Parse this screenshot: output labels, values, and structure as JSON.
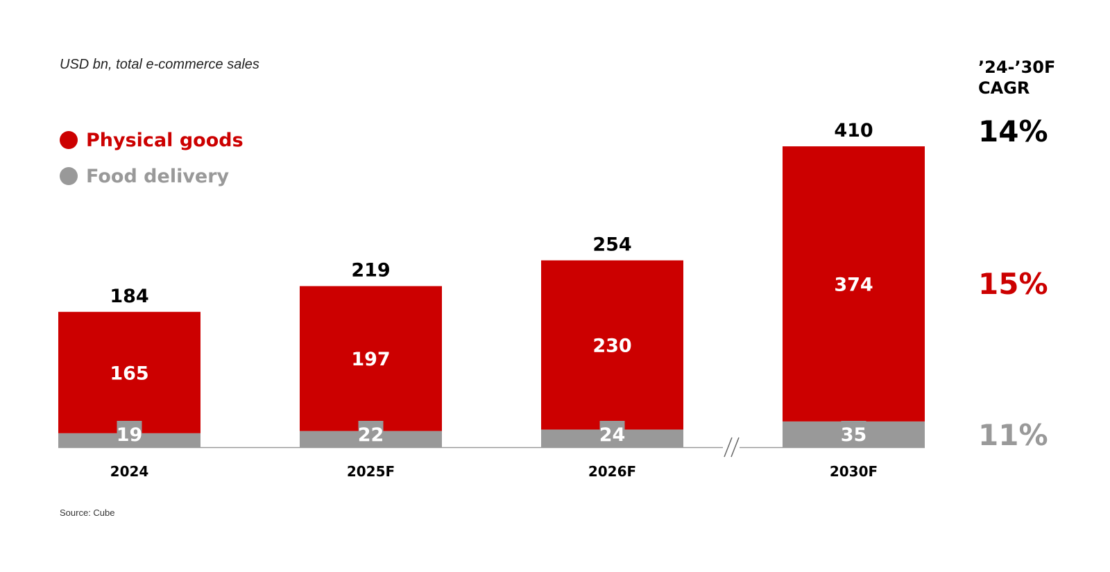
{
  "subtitle": "USD bn, total e-commerce sales",
  "source": "Source: Cube",
  "legend": [
    {
      "label": "Physical goods",
      "color": "#cc0000"
    },
    {
      "label": "Food delivery",
      "color": "#999999"
    }
  ],
  "cagr": {
    "header_line1": "’24-’30F",
    "header_line2": "CAGR",
    "total": {
      "value": "14%",
      "color": "#000000"
    },
    "physical": {
      "value": "15%",
      "color": "#cc0000"
    },
    "food": {
      "value": "11%",
      "color": "#999999"
    }
  },
  "chart_data": {
    "type": "bar",
    "stacked": true,
    "categories": [
      "2024",
      "2025F",
      "2026F",
      "2030F"
    ],
    "series": [
      {
        "name": "Food delivery",
        "values": [
          19,
          22,
          24,
          35
        ],
        "color": "#999999"
      },
      {
        "name": "Physical goods",
        "values": [
          165,
          197,
          230,
          374
        ],
        "color": "#cc0000"
      }
    ],
    "totals": [
      184,
      219,
      254,
      410
    ],
    "axis_break": "between 2026F and 2030F",
    "ylim": [
      0,
      410
    ],
    "grid": false,
    "legend_position": "top-left"
  }
}
